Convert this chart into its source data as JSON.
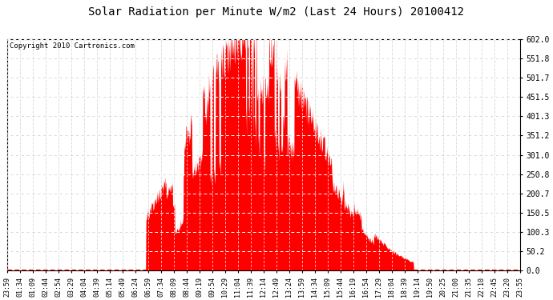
{
  "title": "Solar Radiation per Minute W/m2 (Last 24 Hours) 20100412",
  "copyright_text": "Copyright 2010 Cartronics.com",
  "fill_color": "#ff0000",
  "line_color": "#ff0000",
  "background_color": "#ffffff",
  "grid_color": "#c8c8c8",
  "dashed_line_color": "#ff0000",
  "y_min": 0.0,
  "y_max": 602.0,
  "yticks": [
    0.0,
    50.2,
    100.3,
    150.5,
    200.7,
    250.8,
    301.0,
    351.2,
    401.3,
    451.5,
    501.7,
    551.8,
    602.0
  ],
  "xtick_labels": [
    "23:59",
    "01:34",
    "01:09",
    "02:44",
    "02:54",
    "03:29",
    "04:04",
    "04:39",
    "05:14",
    "05:49",
    "06:24",
    "06:59",
    "07:34",
    "08:09",
    "08:44",
    "09:19",
    "09:54",
    "10:29",
    "11:04",
    "11:39",
    "12:14",
    "12:49",
    "13:24",
    "13:59",
    "14:34",
    "15:09",
    "15:44",
    "16:19",
    "16:54",
    "17:29",
    "18:04",
    "18:39",
    "19:14",
    "19:50",
    "20:25",
    "21:00",
    "21:35",
    "22:10",
    "22:45",
    "23:20",
    "23:55"
  ],
  "num_points": 1440,
  "sunrise_minute": 390,
  "sunset_minute": 1140,
  "peak_minute": 690,
  "peak_value": 598,
  "figwidth": 6.9,
  "figheight": 3.75,
  "dpi": 100
}
